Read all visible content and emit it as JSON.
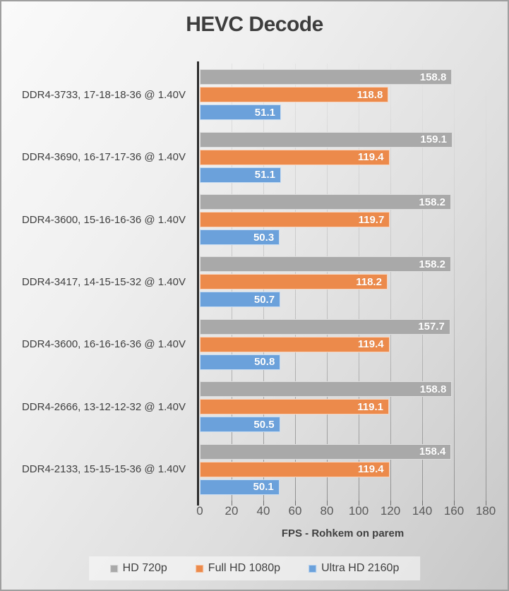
{
  "chart_data": {
    "type": "bar",
    "orientation": "horizontal",
    "title": "HEVC Decode",
    "xlabel": "FPS - Rohkem on parem",
    "xlim": [
      0,
      180
    ],
    "xticks": [
      0,
      20,
      40,
      60,
      80,
      100,
      120,
      140,
      160,
      180
    ],
    "grid": true,
    "legend_position": "bottom",
    "value_labels": "inside-end",
    "categories": [
      "DDR4-3733, 17-18-18-36 @ 1.40V",
      "DDR4-3690, 16-17-17-36 @ 1.40V",
      "DDR4-3600, 15-16-16-36 @ 1.40V",
      "DDR4-3417, 14-15-15-32 @ 1.40V",
      "DDR4-3600, 16-16-16-36 @ 1.40V",
      "DDR4-2666, 13-12-12-32 @ 1.40V",
      "DDR4-2133, 15-15-15-36 @ 1.40V"
    ],
    "series": [
      {
        "name": "HD 720p",
        "color": "#a9a9a9",
        "values": [
          158.8,
          159.1,
          158.2,
          158.2,
          157.7,
          158.8,
          158.4
        ]
      },
      {
        "name": "Full HD 1080p",
        "color": "#ec8a4b",
        "values": [
          118.8,
          119.4,
          119.7,
          118.2,
          119.4,
          119.1,
          119.4
        ]
      },
      {
        "name": "Ultra HD 2160p",
        "color": "#6ba1db",
        "values": [
          51.1,
          51.1,
          50.3,
          50.7,
          50.8,
          50.5,
          50.1
        ]
      }
    ],
    "colors": {
      "background_top": "#fafafa",
      "background_bottom": "#c7c7c7",
      "title_text": "#3d3d3d",
      "axis_line": "#2d2d2d",
      "tick_text": "#595959",
      "bar_value_text": "#ffffff"
    }
  }
}
